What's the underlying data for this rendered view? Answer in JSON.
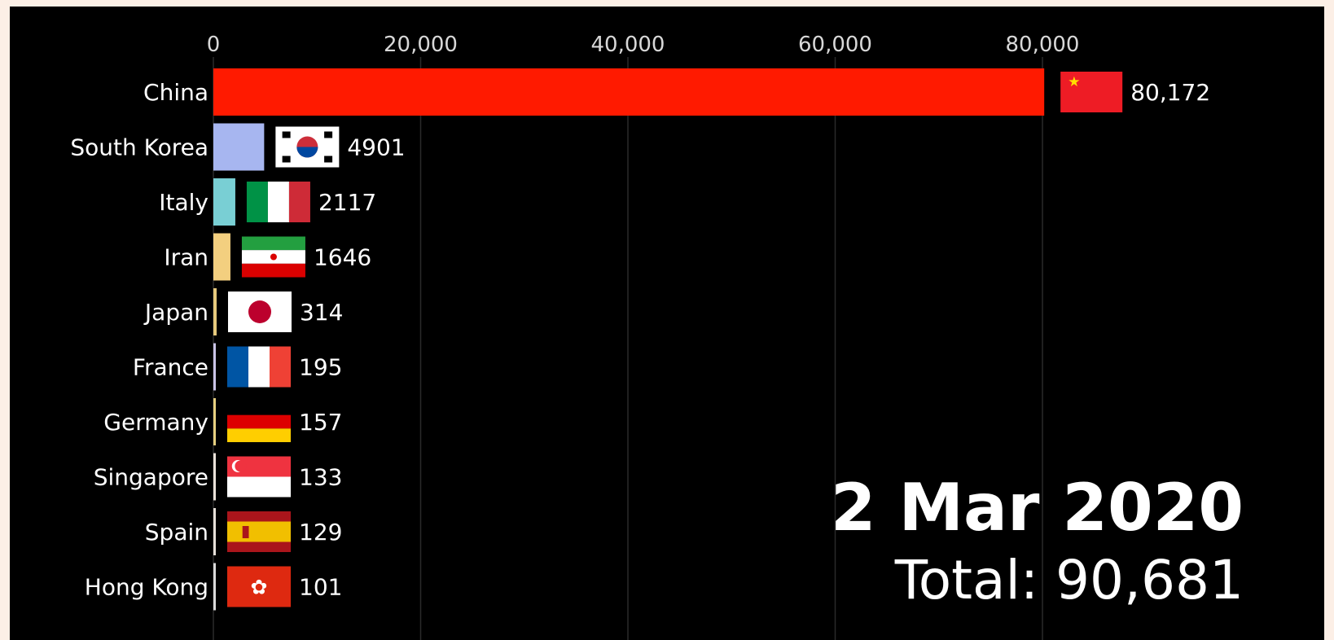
{
  "chart_data": {
    "type": "bar",
    "orientation": "horizontal",
    "categories": [
      "China",
      "South Korea",
      "Italy",
      "Iran",
      "Japan",
      "France",
      "Germany",
      "Singapore",
      "Spain",
      "Hong Kong"
    ],
    "values": [
      80172,
      4901,
      2117,
      1646,
      314,
      195,
      157,
      133,
      129,
      101
    ],
    "value_labels": [
      "80,172",
      "4901",
      "2117",
      "1646",
      "314",
      "195",
      "157",
      "133",
      "129",
      "101"
    ],
    "bar_colors": [
      "#ff1a00",
      "#a7b6f0",
      "#79cfd4",
      "#f3cf7f",
      "#e6c97c",
      "#c9c3e6",
      "#e6cf7f",
      "#e9e1d8",
      "#e6e0d8",
      "#d9d9d9"
    ],
    "flags": [
      "china-flag",
      "south-korea-flag",
      "italy-flag",
      "iran-flag",
      "japan-flag",
      "france-flag",
      "germany-flag",
      "singapore-flag",
      "spain-flag",
      "hong-kong-flag"
    ],
    "xticks": [
      0,
      20000,
      40000,
      60000,
      80000
    ],
    "xtick_labels": [
      "0",
      "20,000",
      "40,000",
      "60,000",
      "80,000"
    ],
    "xlim": [
      0,
      100000
    ],
    "grid": true,
    "axis_position": "top",
    "date": "2 Mar 2020",
    "total_label": "Total: 90,681"
  }
}
